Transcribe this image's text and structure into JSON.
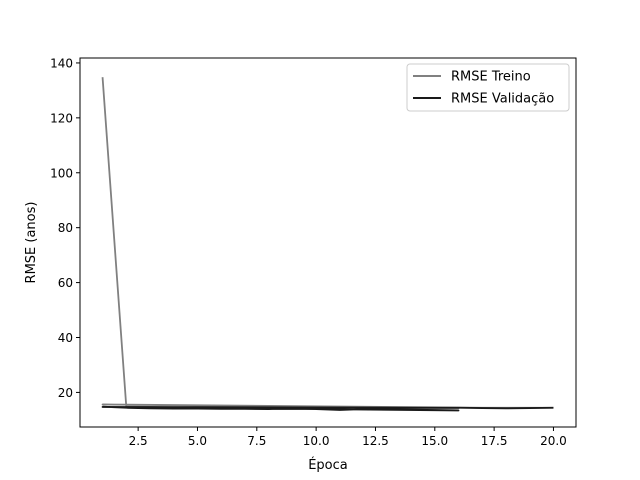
{
  "chart_data": {
    "type": "line",
    "title": "",
    "xlabel": "Época",
    "ylabel": "RMSE (anos)",
    "xlim": [
      0.05,
      20.95
    ],
    "ylim": [
      7.4,
      141.8
    ],
    "xticks": [
      2.5,
      5.0,
      7.5,
      10.0,
      12.5,
      15.0,
      17.5,
      20.0
    ],
    "xtick_labels": [
      "2.5",
      "5.0",
      "7.5",
      "10.0",
      "12.5",
      "15.0",
      "17.5",
      "20.0"
    ],
    "yticks": [
      20,
      40,
      60,
      80,
      100,
      120,
      140
    ],
    "ytick_labels": [
      "20",
      "40",
      "60",
      "80",
      "100",
      "120",
      "140"
    ],
    "grid": false,
    "legend_position": "top-right",
    "series": [
      {
        "name": "RMSE Treino",
        "color": "#808080",
        "x": [
          1,
          2,
          3,
          4,
          5,
          6,
          7,
          8,
          9,
          10,
          11,
          12,
          13,
          14,
          15,
          16,
          1,
          16,
          17,
          18,
          19,
          20
        ],
        "y": [
          134.8,
          14.8,
          14.7,
          14.6,
          14.6,
          14.5,
          14.5,
          14.5,
          14.4,
          14.4,
          14.4,
          14.3,
          14.3,
          14.3,
          14.2,
          14.2,
          15.6,
          14.5,
          14.4,
          14.4,
          14.4,
          14.4
        ]
      },
      {
        "name": "RMSE Validação",
        "color": "#1a1a1a",
        "x": [
          1,
          2,
          3,
          4,
          5,
          6,
          7,
          8,
          9,
          10,
          11,
          12,
          13,
          14,
          15,
          16,
          1,
          16,
          17,
          18,
          19,
          20
        ],
        "y": [
          14.8,
          14.4,
          14.2,
          14.1,
          14.1,
          14.0,
          14.0,
          13.9,
          14.2,
          13.9,
          13.6,
          13.9,
          13.8,
          13.7,
          13.6,
          13.4,
          14.7,
          14.4,
          14.3,
          14.2,
          14.3,
          14.4
        ]
      }
    ]
  }
}
